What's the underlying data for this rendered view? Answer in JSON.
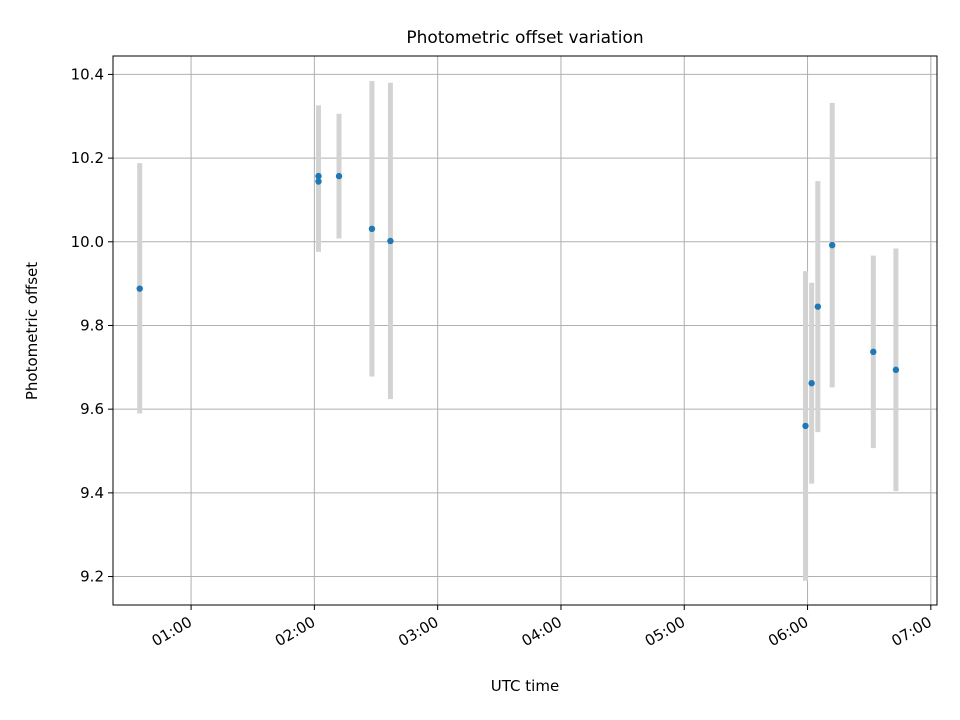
{
  "colors": {
    "point": "#1f77b4",
    "errorbar": "#d3d3d3",
    "grid": "#b0b0b0",
    "axes": "#000000"
  },
  "chart_data": {
    "type": "scatter",
    "title": "Photometric offset variation",
    "xlabel": "UTC time",
    "ylabel": "Photometric offset",
    "grid": true,
    "legend": "none",
    "x_axis_type": "time",
    "xlim": [
      "00:22",
      "07:03"
    ],
    "ylim": [
      9.132,
      10.444
    ],
    "xticks": [
      "01:00",
      "02:00",
      "03:00",
      "04:00",
      "05:00",
      "06:00",
      "07:00"
    ],
    "yticks": [
      "9.2",
      "9.4",
      "9.6",
      "9.8",
      "10.0",
      "10.2",
      "10.4"
    ],
    "series": [
      {
        "style": "points with vertical error bars",
        "points": [
          {
            "x": "00:35",
            "y": 9.888,
            "ymin": 9.59,
            "ymax": 10.188
          },
          {
            "x": "02:02",
            "y": 10.157,
            "ymin": 9.988,
            "ymax": 10.326
          },
          {
            "x": "02:02",
            "y": 10.144,
            "ymin": 9.976,
            "ymax": 10.312
          },
          {
            "x": "02:12",
            "y": 10.157,
            "ymin": 10.008,
            "ymax": 10.306
          },
          {
            "x": "02:28",
            "y": 10.031,
            "ymin": 9.678,
            "ymax": 10.384
          },
          {
            "x": "02:37",
            "y": 10.002,
            "ymin": 9.624,
            "ymax": 10.38
          },
          {
            "x": "05:59",
            "y": 9.56,
            "ymin": 9.19,
            "ymax": 9.93
          },
          {
            "x": "06:02",
            "y": 9.662,
            "ymin": 9.422,
            "ymax": 9.902
          },
          {
            "x": "06:05",
            "y": 9.845,
            "ymin": 9.545,
            "ymax": 10.145
          },
          {
            "x": "06:12",
            "y": 9.992,
            "ymin": 9.652,
            "ymax": 10.332
          },
          {
            "x": "06:32",
            "y": 9.737,
            "ymin": 9.507,
            "ymax": 9.967
          },
          {
            "x": "06:43",
            "y": 9.694,
            "ymin": 9.404,
            "ymax": 9.984
          }
        ]
      }
    ]
  }
}
